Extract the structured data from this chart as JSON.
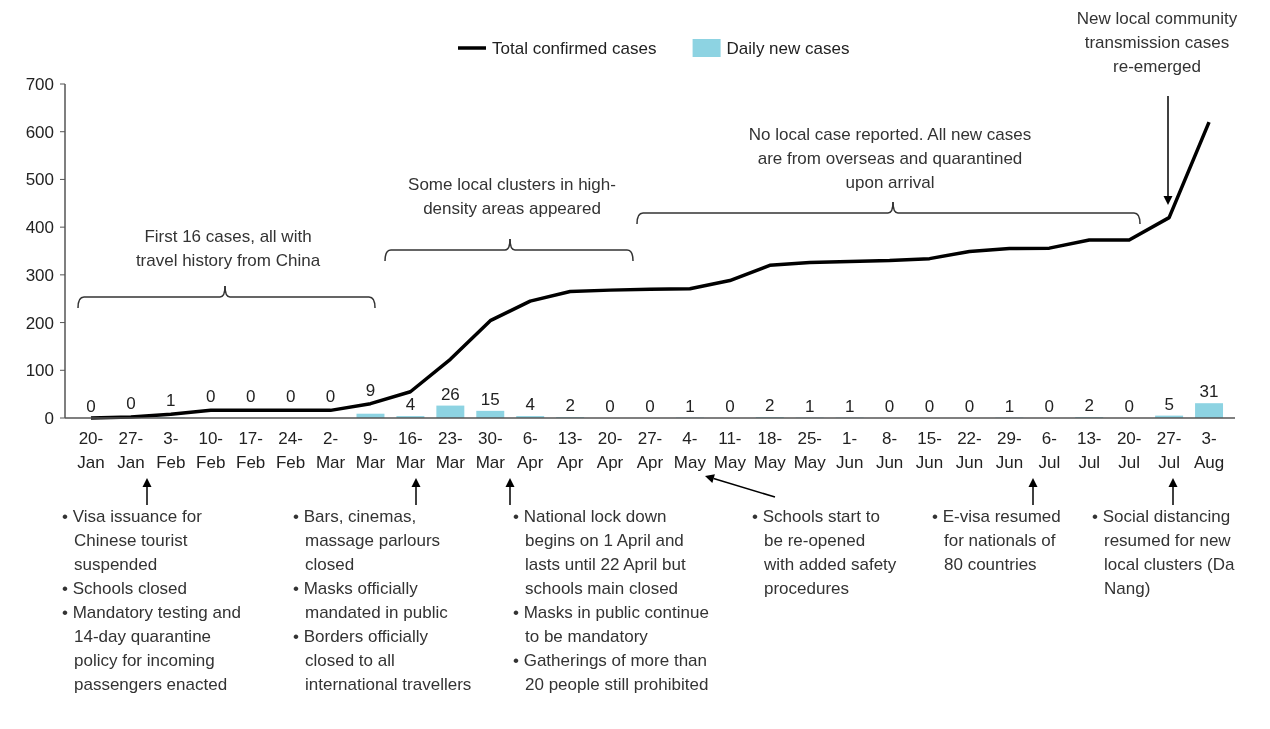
{
  "chart_data": {
    "type": "bar",
    "categories": [
      "20-Jan",
      "27-Jan",
      "3-Feb",
      "10-Feb",
      "17-Feb",
      "24-Feb",
      "2-Mar",
      "9-Mar",
      "16-Mar",
      "23-Mar",
      "30-Mar",
      "6-Apr",
      "13-Apr",
      "20-Apr",
      "27-Apr",
      "4-May",
      "11-May",
      "18-May",
      "25-May",
      "1-Jun",
      "8-Jun",
      "15-Jun",
      "22-Jun",
      "29-Jun",
      "6-Jul",
      "13-Jul",
      "20-Jul",
      "27-Jul",
      "3-Aug"
    ],
    "series": [
      {
        "name": "Total confirmed cases",
        "type": "line",
        "color": "#000000",
        "values": [
          0,
          2,
          8,
          16,
          16,
          16,
          16,
          30,
          55,
          123,
          204,
          245,
          265,
          268,
          270,
          271,
          288,
          320,
          326,
          328,
          330,
          334,
          349,
          355,
          356,
          373,
          373,
          420,
          620
        ]
      },
      {
        "name": "Daily new cases",
        "color": "#8dd3e2",
        "data_labels": true,
        "values": [
          0,
          0,
          1,
          0,
          0,
          0,
          0,
          9,
          4,
          26,
          15,
          4,
          2,
          0,
          0,
          1,
          0,
          2,
          1,
          1,
          0,
          0,
          0,
          1,
          0,
          2,
          0,
          5,
          31
        ]
      }
    ],
    "ylim": [
      0,
      700
    ],
    "yticks": [
      0,
      100,
      200,
      300,
      400,
      500,
      600,
      700
    ],
    "grid": false,
    "legend": "top",
    "marker": "none",
    "line_style": "solid",
    "annotations": [
      "First 16 cases, all with\ntravel history from China",
      "Some local clusters in high-\ndensity areas appeared",
      "No local case reported. All new cases\nare from overseas and quarantined\nupon arrival",
      "New local community\ntransmission cases\nre-emerged",
      "• Visa issuance for\nChinese tourist\nsuspended",
      "• Schools closed",
      "• Mandatory testing and\n14-day quarantine\npolicy for incoming\npassengers enacted",
      "• Bars, cinemas,\nmassage parlours\nclosed",
      "• Masks officially\nmandated in public",
      "• Borders officially\nclosed to all\ninternational travellers",
      "• National lock down\nbegins on 1 April and\nlasts until 22 April but\nschools main closed",
      "• Masks in public continue\nto be mandatory",
      "• Gatherings of more than\n20 people still prohibited",
      "• Schools start to\nbe re-opened\nwith added safety\nprocedures",
      "• E-visa resumed\nfor nationals of\n80 countries",
      "• Social distancing\nresumed for new\nlocal clusters (Da\nNang)"
    ]
  }
}
